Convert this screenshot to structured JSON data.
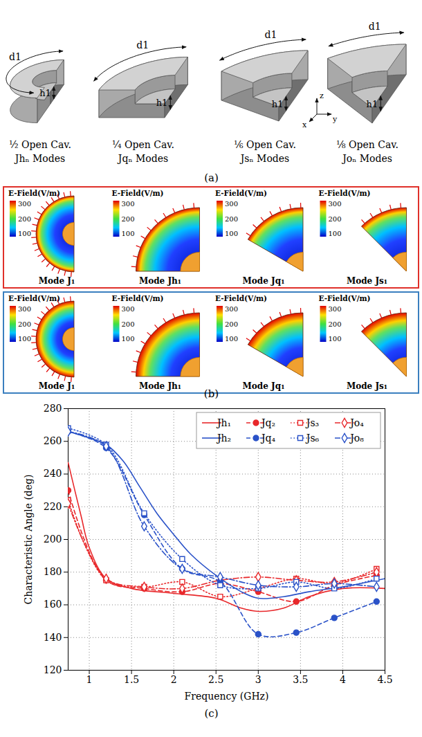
{
  "figure_a": {
    "caption": "(a)",
    "arc_label": "d1",
    "height_label": "h1",
    "axes": {
      "x": "x",
      "y": "y",
      "z": "z"
    },
    "cavities": [
      {
        "name": "½ Open Cav.",
        "modes": "Jhₙ Modes"
      },
      {
        "name": "¼ Open Cav.",
        "modes": "Jqₙ Modes"
      },
      {
        "name": "⅙ Open Cav.",
        "modes": "Jsₙ Modes"
      },
      {
        "name": "⅛ Open Cav.",
        "modes": "Joₙ Modes"
      }
    ]
  },
  "figure_b": {
    "caption": "(b)",
    "colorbar": {
      "title": "E-Field(V/m)",
      "range": [
        80,
        320
      ],
      "ticks": [
        100,
        200,
        300
      ]
    },
    "rows": [
      {
        "color": "#e0302a",
        "panels": [
          "Mode J₁",
          "Mode Jh₁",
          "Mode Jq₁",
          "Mode Js₁"
        ]
      },
      {
        "color": "#3a7fbf",
        "panels": [
          "Mode J₁",
          "Mode Jh₁",
          "Mode Jq₁",
          "Mode Js₁"
        ]
      }
    ]
  },
  "chart_data": {
    "type": "line",
    "caption": "(c)",
    "xlabel": "Frequency (GHz)",
    "ylabel": "Characteristic Angle (deg)",
    "xlim": [
      0.75,
      4.5
    ],
    "xticks": [
      1,
      1.5,
      2,
      2.5,
      3,
      3.5,
      4,
      4.5
    ],
    "ylim": [
      120,
      280
    ],
    "yticks": [
      120,
      140,
      160,
      180,
      200,
      220,
      240,
      260,
      280
    ],
    "grid": true,
    "legend": "top-right",
    "series": [
      {
        "name": "Jh₁",
        "color": "#e8282b",
        "line_style": "solid",
        "x": [
          0.75,
          0.9,
          1.0,
          1.2,
          1.5,
          2.0,
          2.5,
          2.8,
          3.0,
          3.3,
          3.6,
          4.0,
          4.5
        ],
        "values": [
          247,
          215,
          195,
          176,
          170,
          167,
          164,
          158,
          156,
          158,
          165,
          170,
          170
        ]
      },
      {
        "name": "Jq₂",
        "color": "#e8282b",
        "line_style": "dashed",
        "marker": "filled_circle",
        "x": [
          0.75,
          1.2,
          1.65,
          2.1,
          2.55,
          3.0,
          3.45,
          3.9,
          4.4
        ],
        "values": [
          230,
          175,
          170,
          168,
          173,
          168,
          162,
          172,
          178
        ]
      },
      {
        "name": "Js₃",
        "color": "#e8282b",
        "line_style": "dotted",
        "marker": "open_square",
        "x": [
          0.75,
          1.2,
          1.65,
          2.1,
          2.55,
          3.0,
          3.45,
          3.9,
          4.4
        ],
        "values": [
          224,
          175,
          171,
          174,
          165,
          170,
          176,
          173,
          182
        ]
      },
      {
        "name": "Jo₄",
        "color": "#e8282b",
        "line_style": "dashdot",
        "marker": "open_diamond",
        "x": [
          0.75,
          1.2,
          1.65,
          2.1,
          2.55,
          3.0,
          3.45,
          3.9,
          4.4
        ],
        "values": [
          222,
          176,
          171,
          170,
          175,
          177,
          175,
          174,
          180
        ]
      },
      {
        "name": "Jh₂",
        "color": "#2a52c8",
        "line_style": "solid",
        "x": [
          0.75,
          1.0,
          1.2,
          1.4,
          1.6,
          1.8,
          2.0,
          2.2,
          2.5,
          2.8,
          3.0,
          3.3,
          3.6,
          4.0,
          4.5
        ],
        "values": [
          266,
          262,
          258,
          248,
          232,
          216,
          203,
          191,
          178,
          168,
          164,
          165,
          168,
          171,
          176
        ]
      },
      {
        "name": "Jq₄",
        "color": "#2a52c8",
        "line_style": "dashed",
        "marker": "filled_circle",
        "x": [
          0.75,
          1.2,
          1.65,
          2.1,
          2.55,
          3.0,
          3.45,
          3.9,
          4.4
        ],
        "values": [
          266,
          256,
          215,
          182,
          174,
          142,
          143,
          152,
          162
        ]
      },
      {
        "name": "Js₆",
        "color": "#2a52c8",
        "line_style": "dotted",
        "marker": "open_square",
        "x": [
          0.75,
          1.2,
          1.65,
          2.1,
          2.55,
          3.0,
          3.45,
          3.9,
          4.4
        ],
        "values": [
          268,
          258,
          216,
          188,
          172,
          170,
          174,
          170,
          176
        ]
      },
      {
        "name": "Jo₈",
        "color": "#2a52c8",
        "line_style": "dashdot",
        "marker": "open_diamond",
        "x": [
          0.75,
          1.2,
          1.65,
          2.1,
          2.55,
          3.0,
          3.45,
          3.9,
          4.4
        ],
        "values": [
          266,
          257,
          208,
          182,
          177,
          172,
          171,
          173,
          171
        ]
      }
    ]
  }
}
